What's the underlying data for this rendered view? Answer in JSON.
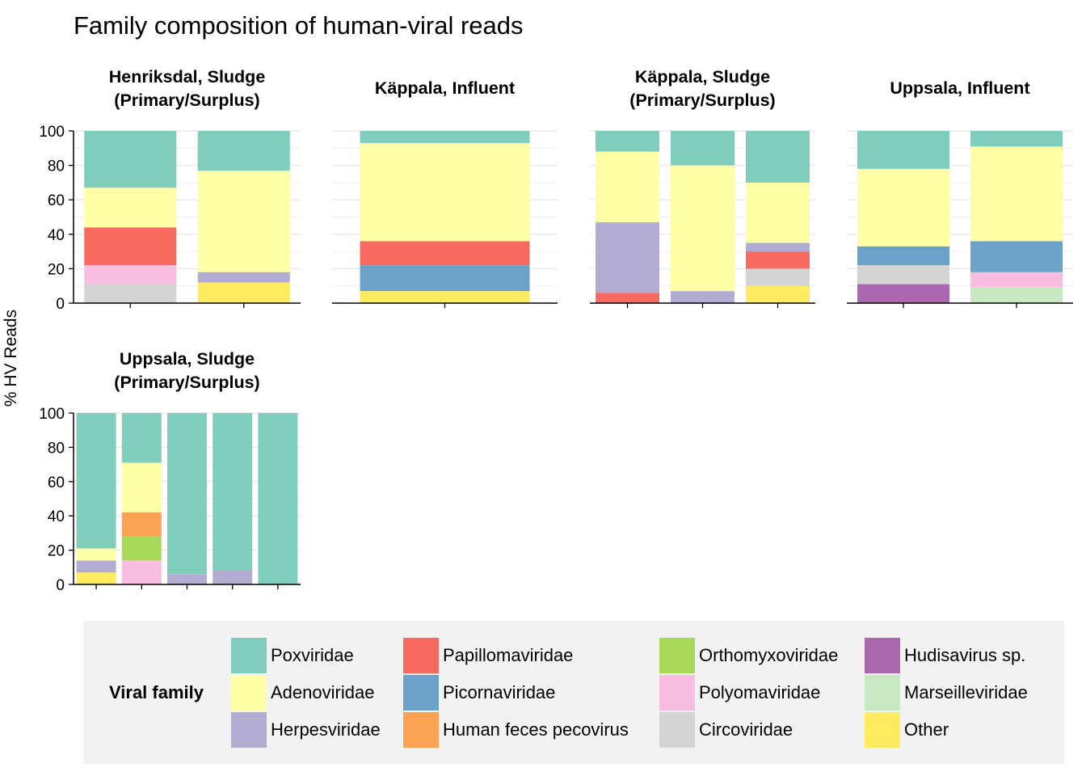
{
  "chart_data": {
    "type": "bar",
    "stacked": true,
    "title": "Family composition of human-viral reads",
    "ylabel": "% HV Reads",
    "xlabel": "",
    "ylim": [
      0,
      100
    ],
    "yticks": [
      0,
      20,
      40,
      60,
      80,
      100
    ],
    "grid": true,
    "legend_title": "Viral family",
    "legend_position": "bottom",
    "families": [
      {
        "name": "Poxviridae",
        "color": "#7fcdbb"
      },
      {
        "name": "Adenoviridae",
        "color": "#ffffa5"
      },
      {
        "name": "Herpesviridae",
        "color": "#b2abd2"
      },
      {
        "name": "Papillomaviridae",
        "color": "#f8695f"
      },
      {
        "name": "Picornaviridae",
        "color": "#6ca1ca"
      },
      {
        "name": "Human feces pecovirus",
        "color": "#fca253"
      },
      {
        "name": "Orthomyxoviridae",
        "color": "#a8d858"
      },
      {
        "name": "Polyomaviridae",
        "color": "#f8bde0"
      },
      {
        "name": "Circoviridae",
        "color": "#d4d4d4"
      },
      {
        "name": "Hudisavirus sp.",
        "color": "#ad67b0"
      },
      {
        "name": "Marseilleviridae",
        "color": "#c6e8c2"
      },
      {
        "name": "Other",
        "color": "#ffeb60"
      }
    ],
    "facets": [
      {
        "title_lines": [
          "Henriksdal, Sludge",
          "(Primary/Surplus)"
        ],
        "bars": [
          {
            "segments": [
              [
                "Circoviridae",
                11
              ],
              [
                "Polyomaviridae",
                11
              ],
              [
                "Papillomaviridae",
                22
              ],
              [
                "Adenoviridae",
                23
              ],
              [
                "Poxviridae",
                33
              ]
            ]
          },
          {
            "segments": [
              [
                "Other",
                12
              ],
              [
                "Herpesviridae",
                6
              ],
              [
                "Adenoviridae",
                59
              ],
              [
                "Poxviridae",
                23
              ]
            ]
          }
        ]
      },
      {
        "title_lines": [
          "Käppala, Influent"
        ],
        "bars": [
          {
            "segments": [
              [
                "Other",
                7
              ],
              [
                "Picornaviridae",
                15
              ],
              [
                "Papillomaviridae",
                14
              ],
              [
                "Adenoviridae",
                57
              ],
              [
                "Poxviridae",
                7
              ]
            ]
          }
        ]
      },
      {
        "title_lines": [
          "Käppala, Sludge",
          "(Primary/Surplus)"
        ],
        "bars": [
          {
            "segments": [
              [
                "Papillomaviridae",
                6
              ],
              [
                "Herpesviridae",
                41
              ],
              [
                "Adenoviridae",
                41
              ],
              [
                "Poxviridae",
                12
              ]
            ]
          },
          {
            "segments": [
              [
                "Herpesviridae",
                7
              ],
              [
                "Adenoviridae",
                73
              ],
              [
                "Poxviridae",
                20
              ]
            ]
          },
          {
            "segments": [
              [
                "Other",
                10
              ],
              [
                "Circoviridae",
                10
              ],
              [
                "Papillomaviridae",
                10
              ],
              [
                "Herpesviridae",
                5
              ],
              [
                "Adenoviridae",
                35
              ],
              [
                "Poxviridae",
                30
              ]
            ]
          }
        ]
      },
      {
        "title_lines": [
          "Uppsala, Influent"
        ],
        "bars": [
          {
            "segments": [
              [
                "Hudisavirus sp.",
                11
              ],
              [
                "Circoviridae",
                11
              ],
              [
                "Picornaviridae",
                11
              ],
              [
                "Adenoviridae",
                45
              ],
              [
                "Poxviridae",
                22
              ]
            ]
          },
          {
            "segments": [
              [
                "Marseilleviridae",
                9
              ],
              [
                "Polyomaviridae",
                9
              ],
              [
                "Picornaviridae",
                18
              ],
              [
                "Adenoviridae",
                55
              ],
              [
                "Poxviridae",
                9
              ]
            ]
          }
        ]
      },
      {
        "title_lines": [
          "Uppsala, Sludge",
          "(Primary/Surplus)"
        ],
        "bars": [
          {
            "segments": [
              [
                "Other",
                7
              ],
              [
                "Herpesviridae",
                7
              ],
              [
                "Adenoviridae",
                7
              ],
              [
                "Poxviridae",
                79
              ]
            ]
          },
          {
            "segments": [
              [
                "Polyomaviridae",
                14
              ],
              [
                "Orthomyxoviridae",
                14
              ],
              [
                "Human feces pecovirus",
                14
              ],
              [
                "Adenoviridae",
                29
              ],
              [
                "Poxviridae",
                29
              ]
            ]
          },
          {
            "segments": [
              [
                "Herpesviridae",
                6
              ],
              [
                "Poxviridae",
                94
              ]
            ]
          },
          {
            "segments": [
              [
                "Herpesviridae",
                8
              ],
              [
                "Poxviridae",
                92
              ]
            ]
          },
          {
            "segments": [
              [
                "Poxviridae",
                100
              ]
            ]
          }
        ]
      }
    ]
  }
}
